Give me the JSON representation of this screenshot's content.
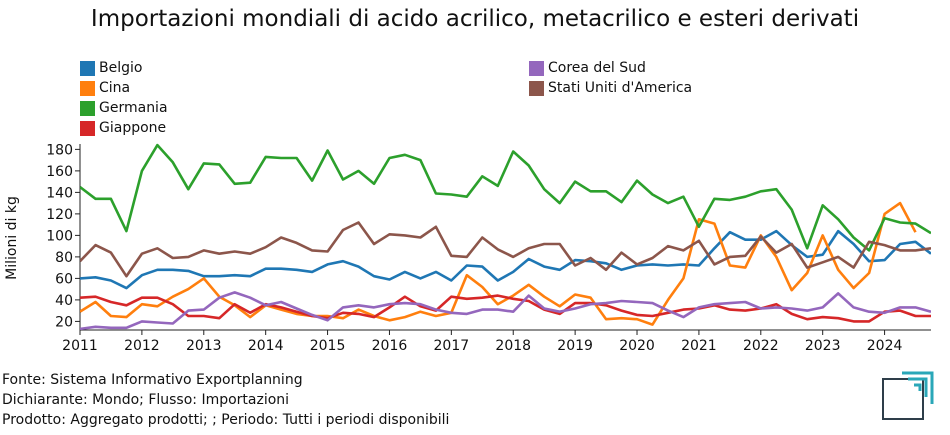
{
  "page": {
    "title": "Importazioni mondiali di acido acrilico, metacrilico e esteri derivati"
  },
  "footer": {
    "source": "Fonte: Sistema Informativo Exportplanning",
    "declarant": "Dichiarante: Mondo; Flusso: Importazioni",
    "product": "Prodotto: Aggregato prodotti; ; Periodo: Tutti i periodi disponibili"
  },
  "logo": {
    "icon": "exportplanning-logo-icon",
    "colors": [
      "#2e3e4a",
      "#2aa7b8"
    ]
  },
  "chart_data": {
    "type": "line",
    "title": "Importazioni mondiali di acido acrilico, metacrilico e esteri derivati",
    "xlabel": "",
    "ylabel": "Milioni di kg",
    "xlim": [
      2011,
      2024.75
    ],
    "ylim": [
      12,
      185
    ],
    "yticks": [
      20,
      40,
      60,
      80,
      100,
      120,
      140,
      160,
      180
    ],
    "xticks": [
      2011,
      2012,
      2013,
      2014,
      2015,
      2016,
      2017,
      2018,
      2019,
      2020,
      2021,
      2022,
      2023,
      2024
    ],
    "grid": false,
    "legend_position": "top",
    "x_start": 2011,
    "x_step": 0.25,
    "series": [
      {
        "name": "Belgio",
        "color": "#1f77b4",
        "values": [
          60,
          61,
          58,
          51,
          63,
          68,
          68,
          67,
          62,
          62,
          63,
          62,
          69,
          69,
          68,
          66,
          73,
          76,
          71,
          62,
          59,
          66,
          60,
          66,
          58,
          72,
          71,
          58,
          66,
          78,
          71,
          68,
          77,
          76,
          74,
          68,
          72,
          73,
          72,
          73,
          72,
          88,
          103,
          96,
          96,
          104,
          91,
          80,
          82,
          104,
          92,
          76,
          77,
          92,
          94,
          83
        ]
      },
      {
        "name": "Cina",
        "color": "#ff7f0e",
        "values": [
          29,
          38,
          25,
          24,
          36,
          34,
          43,
          50,
          60,
          43,
          35,
          24,
          35,
          31,
          27,
          25,
          25,
          23,
          31,
          25,
          21,
          24,
          29,
          25,
          28,
          63,
          52,
          36,
          44,
          54,
          43,
          34,
          45,
          42,
          22,
          23,
          22,
          17,
          40,
          60,
          115,
          111,
          72,
          70,
          100,
          80,
          49,
          65,
          100,
          68,
          51,
          65,
          120,
          130,
          103
        ]
      },
      {
        "name": "Germania",
        "color": "#2ca02c",
        "values": [
          145,
          134,
          134,
          104,
          160,
          184,
          168,
          143,
          167,
          166,
          148,
          149,
          173,
          172,
          172,
          151,
          179,
          152,
          160,
          148,
          172,
          175,
          170,
          139,
          138,
          136,
          155,
          146,
          178,
          165,
          143,
          130,
          150,
          141,
          141,
          131,
          151,
          138,
          130,
          136,
          108,
          134,
          133,
          136,
          141,
          143,
          124,
          88,
          128,
          115,
          98,
          86,
          116,
          112,
          111,
          102
        ]
      },
      {
        "name": "Giappone",
        "color": "#d62728",
        "values": [
          42,
          43,
          38,
          35,
          42,
          42,
          36,
          25,
          25,
          23,
          36,
          28,
          36,
          33,
          29,
          25,
          23,
          28,
          27,
          24,
          33,
          43,
          34,
          30,
          43,
          41,
          42,
          44,
          41,
          39,
          31,
          27,
          37,
          37,
          35,
          30,
          26,
          25,
          28,
          31,
          32,
          35,
          31,
          30,
          32,
          36,
          27,
          22,
          24,
          23,
          20,
          20,
          29,
          30,
          25,
          25
        ]
      },
      {
        "name": "Corea del Sud",
        "color": "#9467bd",
        "values": [
          13,
          15,
          14,
          14,
          20,
          19,
          18,
          30,
          31,
          42,
          47,
          42,
          35,
          38,
          32,
          26,
          21,
          33,
          35,
          33,
          36,
          37,
          36,
          31,
          28,
          27,
          31,
          31,
          29,
          44,
          32,
          29,
          32,
          36,
          37,
          39,
          38,
          37,
          30,
          24,
          33,
          36,
          37,
          38,
          32,
          33,
          32,
          30,
          33,
          46,
          33,
          29,
          28,
          33,
          33,
          29
        ]
      },
      {
        "name": "Stati Uniti d'America",
        "color": "#8c564b",
        "values": [
          76,
          91,
          84,
          62,
          83,
          88,
          79,
          80,
          86,
          83,
          85,
          83,
          89,
          98,
          93,
          86,
          85,
          105,
          112,
          92,
          101,
          100,
          98,
          108,
          81,
          80,
          98,
          87,
          80,
          88,
          92,
          92,
          72,
          79,
          68,
          84,
          73,
          79,
          90,
          86,
          95,
          73,
          80,
          81,
          99,
          84,
          92,
          70,
          75,
          80,
          70,
          94,
          91,
          86,
          86,
          88
        ]
      }
    ]
  }
}
